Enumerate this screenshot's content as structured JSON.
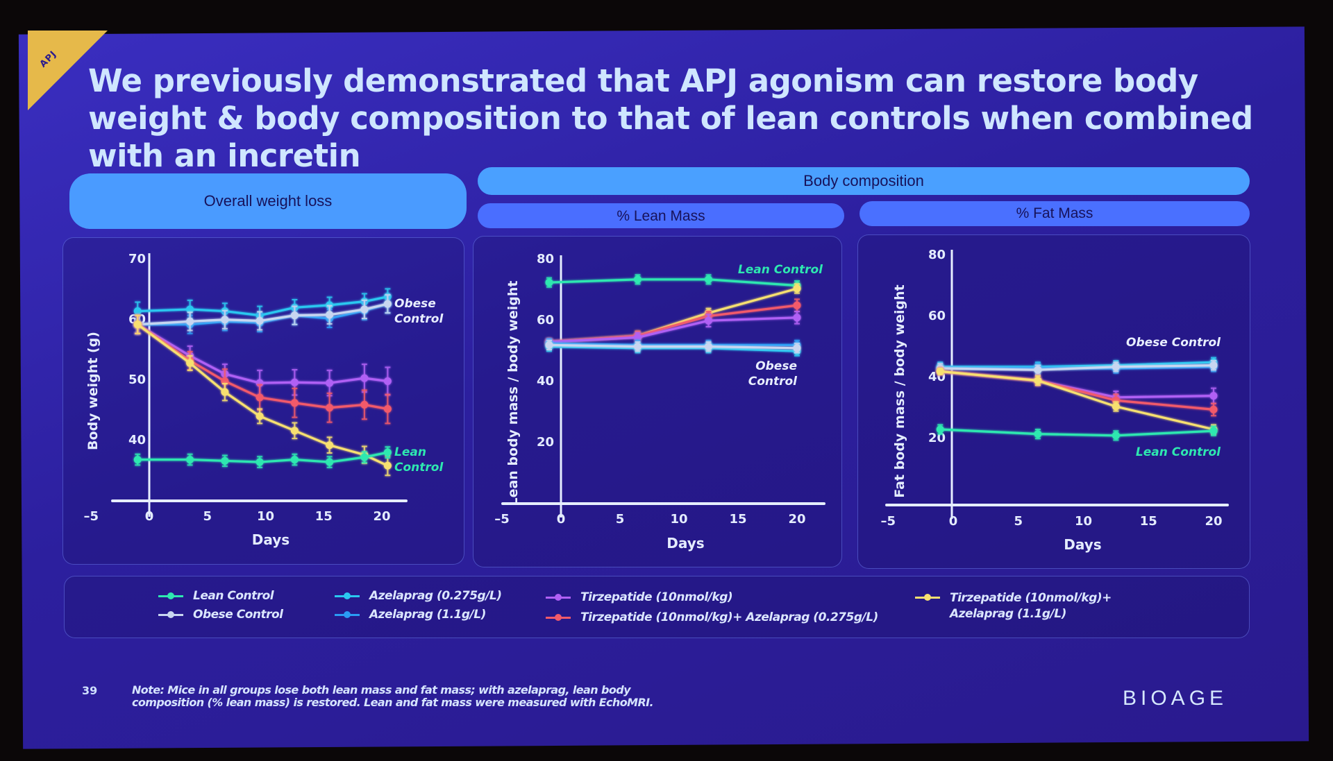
{
  "slide": {
    "tag": "APJ",
    "title": "We previously demonstrated that APJ agonism can restore body weight & body composition to that of lean controls when combined with an incretin",
    "section_labels": {
      "overall": "Overall weight loss",
      "body_composition": "Body composition",
      "lean": "% Lean Mass",
      "fat": "% Fat Mass"
    },
    "page_number": "39",
    "note": "Note: Mice in all groups lose both lean mass and fat mass; with azelaprag, lean body composition (% lean mass) is restored. Lean and fat mass were measured with EchoMRI.",
    "brand": "BIOAGE"
  },
  "legend": [
    {
      "name": "Lean Control",
      "color": "#2ee8b0"
    },
    {
      "name": "Obese Control",
      "color": "#c8d6f0"
    },
    {
      "name": "Azelaprag (0.275g/L)",
      "color": "#2ac8f0"
    },
    {
      "name": "Azelaprag (1.1g/L)",
      "color": "#2a9cf5"
    },
    {
      "name": "Tirzepatide (10nmol/kg)",
      "color": "#b060f5"
    },
    {
      "name": "Tirzepatide (10nmol/kg)+ Azelaprag (0.275g/L)",
      "color": "#f25a6a"
    },
    {
      "name": "Tirzepatide (10nmol/kg)+",
      "name_line2": "Azelaprag (1.1g/L)",
      "color": "#f7e070"
    }
  ],
  "chart_data": [
    {
      "type": "line",
      "title": "Overall weight loss",
      "xlabel": "Days",
      "ylabel": "Body weight (g)",
      "xlim": [
        -5,
        22
      ],
      "ylim": [
        32,
        70
      ],
      "xticks": [
        -5,
        0,
        5,
        10,
        15,
        20
      ],
      "yticks": [
        40,
        50,
        60,
        70
      ],
      "annotations": [
        {
          "text": "Obese",
          "text2": "Control",
          "color": "#e8eeff"
        },
        {
          "text": "Lean",
          "text2": "Control",
          "color": "#2ee8b0"
        }
      ],
      "error_bars": true,
      "series": [
        {
          "name": "Azelaprag (0.275g/L)",
          "color": "#2ac8f0",
          "x": [
            -1,
            3.5,
            6.5,
            9.5,
            12.5,
            15.5,
            18.5,
            20.5
          ],
          "y": [
            61.2,
            61.5,
            61.2,
            60.5,
            61.8,
            62.2,
            62.8,
            63.6
          ],
          "err": [
            1.5,
            1.5,
            1.3,
            1.5,
            1.3,
            1.3,
            1.3,
            1.3
          ]
        },
        {
          "name": "Azelaprag (1.1g/L)",
          "color": "#2a9cf5",
          "x": [
            -1,
            3.5,
            6.5,
            9.5,
            12.5,
            15.5,
            18.5,
            20.5
          ],
          "y": [
            59,
            59,
            59.5,
            59.3,
            60.5,
            60,
            61.3,
            62.4
          ],
          "err": [
            1.5,
            1.5,
            1.5,
            1.5,
            1.5,
            1.5,
            1.5,
            1.5
          ]
        },
        {
          "name": "Obese Control",
          "color": "#c8d6f0",
          "x": [
            -1,
            3.5,
            6.5,
            9.5,
            12.5,
            15.5,
            18.5,
            20.5
          ],
          "y": [
            59,
            59.5,
            59.8,
            59.6,
            60.5,
            60.6,
            61.5,
            62.4
          ],
          "err": [
            1.5,
            1.5,
            1.5,
            1.5,
            1.5,
            1.5,
            1.5,
            1.5
          ]
        },
        {
          "name": "Tirzepatide (10nmol/kg)",
          "color": "#b060f5",
          "x": [
            -1,
            3.5,
            6.5,
            9.5,
            12.5,
            15.5,
            18.5,
            20.5
          ],
          "y": [
            59,
            53.8,
            50.8,
            49.3,
            49.4,
            49.3,
            50.1,
            49.6
          ],
          "err": [
            1.5,
            1.6,
            1.6,
            2.1,
            2.1,
            2.1,
            2.3,
            2.3
          ]
        },
        {
          "name": "Tirzepatide (10nmol/kg)+ Azelaprag (0.275g/L)",
          "color": "#f25a6a",
          "x": [
            -1,
            3.5,
            6.5,
            9.5,
            12.5,
            15.5,
            18.5,
            20.5
          ],
          "y": [
            59,
            53,
            49.6,
            46.9,
            46,
            45.2,
            45.7,
            45
          ],
          "err": [
            1.5,
            1.5,
            2,
            2.1,
            2.4,
            2.4,
            2.4,
            2.4
          ]
        },
        {
          "name": "Tirzepatide (10nmol/kg)+ Azelaprag (1.1g/L)",
          "color": "#f7e070",
          "x": [
            -1,
            3.5,
            6.5,
            9.5,
            12.5,
            15.5,
            18.5,
            20.5
          ],
          "y": [
            59,
            52.6,
            47.8,
            43.8,
            41.4,
            39,
            37.4,
            35.6
          ],
          "err": [
            1.5,
            1.2,
            1.4,
            1.2,
            1.3,
            1.3,
            1.4,
            1.6
          ]
        },
        {
          "name": "Lean Control",
          "color": "#2ee8b0",
          "x": [
            -1,
            3.5,
            6.5,
            9.5,
            12.5,
            15.5,
            18.5,
            20.5
          ],
          "y": [
            36.6,
            36.6,
            36.4,
            36.2,
            36.6,
            36.2,
            37,
            37.8
          ],
          "err": [
            0.9,
            0.9,
            0.9,
            0.9,
            0.9,
            0.9,
            0.9,
            0.9
          ]
        }
      ]
    },
    {
      "type": "line",
      "title": "% Lean Mass",
      "xlabel": "Days",
      "ylabel": "Lean body mass / body weight",
      "xlim": [
        -5,
        22
      ],
      "ylim": [
        0,
        85
      ],
      "xticks": [
        -5,
        0,
        5,
        10,
        15,
        20
      ],
      "yticks": [
        20,
        40,
        60,
        80
      ],
      "annotations": [
        {
          "text": "Lean Control",
          "color": "#2ee8b0"
        },
        {
          "text": "Obese",
          "text2": "Control",
          "color": "#e8eeff"
        }
      ],
      "error_bars": true,
      "series": [
        {
          "name": "Lean Control",
          "color": "#2ee8b0",
          "x": [
            -1,
            6.5,
            12.5,
            20
          ],
          "y": [
            72,
            73,
            73,
            71
          ],
          "err": [
            1.5,
            1.5,
            1.5,
            1.5
          ]
        },
        {
          "name": "Tirzepatide (10nmol/kg)+ Azelaprag (1.1g/L)",
          "color": "#f7e070",
          "x": [
            -1,
            6.5,
            12.5,
            20
          ],
          "y": [
            52.5,
            54.5,
            62,
            70
          ],
          "err": [
            1,
            1.5,
            1.5,
            1.5
          ]
        },
        {
          "name": "Tirzepatide (10nmol/kg)+ Azelaprag (0.275g/L)",
          "color": "#f25a6a",
          "x": [
            -1,
            6.5,
            12.5,
            20
          ],
          "y": [
            52.5,
            54.5,
            61,
            64.5
          ],
          "err": [
            1,
            1.5,
            1.5,
            2
          ]
        },
        {
          "name": "Tirzepatide (10nmol/kg)",
          "color": "#b060f5",
          "x": [
            -1,
            6.5,
            12.5,
            20
          ],
          "y": [
            52.5,
            54,
            59.5,
            60.5
          ],
          "err": [
            1,
            1.5,
            2,
            2
          ]
        },
        {
          "name": "Azelaprag (1.1g/L)",
          "color": "#2a9cf5",
          "x": [
            -1,
            6.5,
            12.5,
            20
          ],
          "y": [
            52,
            51.5,
            51.5,
            51.5
          ],
          "err": [
            1.5,
            1.5,
            1.5,
            1.5
          ]
        },
        {
          "name": "Azelaprag (0.275g/L)",
          "color": "#2ac8f0",
          "x": [
            -1,
            6.5,
            12.5,
            20
          ],
          "y": [
            51,
            50.5,
            50.5,
            49.5
          ],
          "err": [
            1.5,
            1.5,
            1.5,
            1.5
          ]
        },
        {
          "name": "Obese Control",
          "color": "#c8d6f0",
          "x": [
            -1,
            6.5,
            12.5,
            20
          ],
          "y": [
            51.5,
            51,
            51,
            50.5
          ],
          "err": [
            1.5,
            1.5,
            1.5,
            1.5
          ]
        }
      ]
    },
    {
      "type": "line",
      "title": "% Fat Mass",
      "xlabel": "Days",
      "ylabel": "Fat body mass / body weight",
      "xlim": [
        -5,
        22
      ],
      "ylim": [
        0,
        85
      ],
      "xticks": [
        -5,
        0,
        5,
        10,
        15,
        20
      ],
      "yticks": [
        20,
        40,
        60,
        80
      ],
      "annotations": [
        {
          "text": "Obese Control",
          "color": "#e8eeff"
        },
        {
          "text": "Lean Control",
          "color": "#2ee8b0"
        }
      ],
      "error_bars": true,
      "series": [
        {
          "name": "Azelaprag (0.275g/L)",
          "color": "#2ac8f0",
          "x": [
            -1,
            6.5,
            12.5,
            20
          ],
          "y": [
            43,
            43,
            43.5,
            44.5
          ],
          "err": [
            1.5,
            1.5,
            1.5,
            1.5
          ]
        },
        {
          "name": "Azelaprag (1.1g/L)",
          "color": "#2a9cf5",
          "x": [
            -1,
            6.5,
            12.5,
            20
          ],
          "y": [
            42.5,
            42.5,
            42.5,
            43
          ],
          "err": [
            1.5,
            1.5,
            1.5,
            1.5
          ]
        },
        {
          "name": "Obese Control",
          "color": "#c8d6f0",
          "x": [
            -1,
            6.5,
            12.5,
            20
          ],
          "y": [
            42.5,
            42,
            43,
            43.5
          ],
          "err": [
            1.5,
            1.5,
            1.5,
            1.5
          ]
        },
        {
          "name": "Tirzepatide (10nmol/kg)",
          "color": "#b060f5",
          "x": [
            -1,
            6.5,
            12.5,
            20
          ],
          "y": [
            41.5,
            38.5,
            33,
            33.5
          ],
          "err": [
            1,
            1.5,
            2,
            2.5
          ]
        },
        {
          "name": "Tirzepatide (10nmol/kg)+ Azelaprag (0.275g/L)",
          "color": "#f25a6a",
          "x": [
            -1,
            6.5,
            12.5,
            20
          ],
          "y": [
            41.5,
            38.5,
            32,
            29
          ],
          "err": [
            1,
            1.5,
            2,
            2
          ]
        },
        {
          "name": "Tirzepatide (10nmol/kg)+ Azelaprag (1.1g/L)",
          "color": "#f7e070",
          "x": [
            -1,
            6.5,
            12.5,
            20
          ],
          "y": [
            41.5,
            38.5,
            30,
            22.5
          ],
          "err": [
            1,
            1.5,
            1.5,
            1.5
          ]
        },
        {
          "name": "Lean Control",
          "color": "#2ee8b0",
          "x": [
            -1,
            6.5,
            12.5,
            20
          ],
          "y": [
            22.5,
            21,
            20.5,
            22
          ],
          "err": [
            1.5,
            1.5,
            1.5,
            1.5
          ]
        }
      ]
    }
  ]
}
